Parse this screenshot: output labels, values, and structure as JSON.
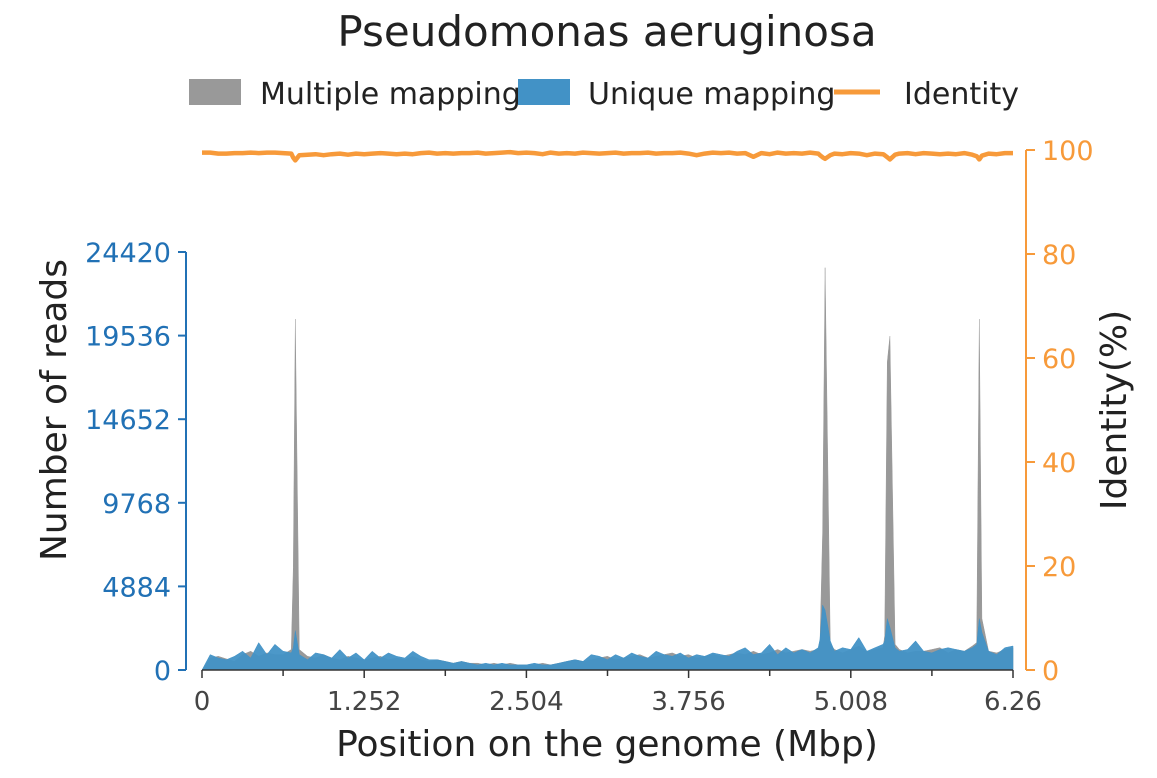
{
  "chart_data": {
    "type": "area",
    "title": "Pseudomonas aeruginosa",
    "xlabel": "Position on the genome (Mbp)",
    "ylabel": "Number of reads",
    "ylabel_right": "Identity(%)",
    "xlim": [
      0,
      6.26
    ],
    "ylim": [
      0,
      24420
    ],
    "ylim_right": [
      0,
      100
    ],
    "x_ticks": [
      "0",
      "1.252",
      "2.504",
      "3.756",
      "5.008",
      "6.26"
    ],
    "y_ticks": [
      "0",
      "4884",
      "9768",
      "14652",
      "19536",
      "24420"
    ],
    "y_ticks_right": [
      "0",
      "20",
      "40",
      "60",
      "80",
      "100"
    ],
    "legend_position": "top-center",
    "colors": {
      "multiple": "#999999",
      "unique": "#4292c6",
      "identity": "#f79a3a",
      "left_axis": "#2171b5",
      "right_axis": "#f79a3a",
      "text": "#222222"
    },
    "legend": [
      {
        "name": "Multiple mapping",
        "kind": "patch",
        "color": "#999999"
      },
      {
        "name": "Unique mapping",
        "kind": "patch",
        "color": "#4292c6"
      },
      {
        "name": "Identity",
        "kind": "line",
        "color": "#f79a3a"
      }
    ],
    "x": [
      0,
      0.063,
      0.126,
      0.188,
      0.251,
      0.313,
      0.376,
      0.438,
      0.501,
      0.563,
      0.626,
      0.689,
      0.705,
      0.72,
      0.751,
      0.814,
      0.876,
      0.939,
      1.001,
      1.064,
      1.127,
      1.189,
      1.252,
      1.314,
      1.377,
      1.439,
      1.502,
      1.565,
      1.627,
      1.69,
      1.752,
      1.815,
      1.878,
      1.94,
      2.003,
      2.065,
      2.128,
      2.19,
      2.253,
      2.316,
      2.378,
      2.441,
      2.503,
      2.566,
      2.629,
      2.691,
      2.754,
      2.816,
      2.879,
      2.941,
      3.004,
      3.067,
      3.129,
      3.192,
      3.254,
      3.317,
      3.379,
      3.442,
      3.505,
      3.567,
      3.63,
      3.692,
      3.755,
      3.818,
      3.88,
      3.943,
      4.005,
      4.068,
      4.13,
      4.193,
      4.256,
      4.318,
      4.381,
      4.443,
      4.506,
      4.568,
      4.631,
      4.694,
      4.756,
      4.77,
      4.79,
      4.81,
      4.85,
      4.882,
      4.944,
      5.007,
      5.07,
      5.132,
      5.195,
      5.257,
      5.27,
      5.29,
      5.31,
      5.35,
      5.383,
      5.446,
      5.508,
      5.571,
      5.633,
      5.696,
      5.759,
      5.821,
      5.884,
      5.946,
      5.98,
      6.0,
      6.02,
      6.072,
      6.134,
      6.197,
      6.26
    ],
    "series": [
      {
        "name": "Multiple mapping",
        "values": [
          0,
          700,
          800,
          650,
          500,
          900,
          1100,
          800,
          1000,
          900,
          900,
          1200,
          6000,
          20500,
          1200,
          800,
          700,
          900,
          700,
          600,
          800,
          700,
          600,
          700,
          800,
          600,
          700,
          600,
          800,
          600,
          500,
          600,
          500,
          400,
          500,
          400,
          400,
          300,
          400,
          300,
          400,
          300,
          300,
          300,
          400,
          300,
          400,
          500,
          600,
          500,
          600,
          700,
          800,
          600,
          700,
          800,
          900,
          700,
          800,
          900,
          1000,
          800,
          900,
          700,
          800,
          900,
          800,
          900,
          1000,
          900,
          1100,
          900,
          1000,
          1200,
          1000,
          1100,
          1200,
          1100,
          1200,
          1600,
          8000,
          23500,
          1500,
          1200,
          1000,
          1200,
          1400,
          1100,
          1200,
          1300,
          2000,
          18000,
          19500,
          1500,
          1200,
          1000,
          1100,
          1100,
          1200,
          1300,
          1000,
          1200,
          1100,
          1400,
          1600,
          20500,
          3000,
          1100,
          1000,
          1200,
          1300
        ]
      },
      {
        "name": "Unique mapping",
        "values": [
          0,
          900,
          700,
          600,
          800,
          1100,
          700,
          1600,
          900,
          1500,
          1100,
          1000,
          1300,
          2300,
          900,
          600,
          1000,
          900,
          700,
          1200,
          700,
          1000,
          600,
          1100,
          700,
          1000,
          800,
          700,
          1100,
          800,
          600,
          600,
          500,
          400,
          500,
          400,
          300,
          400,
          300,
          400,
          300,
          300,
          300,
          400,
          300,
          300,
          400,
          500,
          600,
          500,
          900,
          800,
          600,
          900,
          700,
          1000,
          800,
          700,
          1100,
          900,
          800,
          1000,
          700,
          900,
          800,
          1000,
          900,
          800,
          1100,
          1300,
          900,
          1000,
          1500,
          900,
          1300,
          1000,
          1200,
          1000,
          1300,
          1800,
          3800,
          3500,
          1700,
          1100,
          1300,
          1200,
          1900,
          1100,
          1300,
          1500,
          1700,
          3000,
          2500,
          1300,
          1100,
          1200,
          1700,
          1100,
          1000,
          1200,
          1300,
          1200,
          1100,
          1300,
          1500,
          3000,
          2200,
          1100,
          900,
          1300,
          1400
        ]
      },
      {
        "name": "Identity",
        "axis": "right",
        "values": [
          99.5,
          99.5,
          99.3,
          99.3,
          99.4,
          99.4,
          99.5,
          99.4,
          99.5,
          99.5,
          99.4,
          99.3,
          98.5,
          98.0,
          99.0,
          99.1,
          99.2,
          99.0,
          99.2,
          99.3,
          99.1,
          99.3,
          99.2,
          99.3,
          99.4,
          99.3,
          99.2,
          99.3,
          99.2,
          99.4,
          99.5,
          99.3,
          99.4,
          99.3,
          99.4,
          99.4,
          99.5,
          99.3,
          99.4,
          99.5,
          99.6,
          99.4,
          99.5,
          99.4,
          99.2,
          99.5,
          99.3,
          99.4,
          99.3,
          99.5,
          99.4,
          99.3,
          99.4,
          99.5,
          99.3,
          99.4,
          99.4,
          99.5,
          99.3,
          99.4,
          99.4,
          99.5,
          99.3,
          99.0,
          99.3,
          99.5,
          99.4,
          99.5,
          99.3,
          99.4,
          98.7,
          99.4,
          99.2,
          99.5,
          99.3,
          99.4,
          99.3,
          99.5,
          99.3,
          99.0,
          98.6,
          98.3,
          99.0,
          99.3,
          99.2,
          99.4,
          99.3,
          99.0,
          99.3,
          99.2,
          99.0,
          98.6,
          98.2,
          99.1,
          99.3,
          99.4,
          99.2,
          99.4,
          99.3,
          99.2,
          99.3,
          99.2,
          99.4,
          99.1,
          98.8,
          98.2,
          98.9,
          99.3,
          99.2,
          99.4,
          99.4
        ]
      }
    ]
  }
}
